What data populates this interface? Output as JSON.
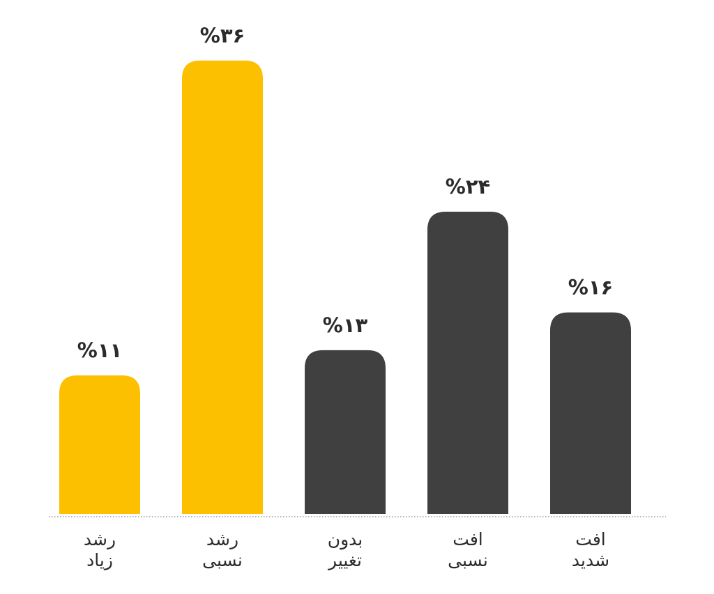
{
  "chart_data": {
    "type": "bar",
    "categories": [
      [
        "رشد",
        "زیاد"
      ],
      [
        "رشد",
        "نسبی"
      ],
      [
        "بدون",
        "تغییر"
      ],
      [
        "افت",
        "نسبی"
      ],
      [
        "افت",
        "شدید"
      ]
    ],
    "values": [
      11,
      36,
      13,
      24,
      16
    ],
    "value_labels": [
      "%۱۱",
      "%۳۶",
      "%۱۳",
      "%۲۴",
      "%۱۶"
    ],
    "bar_colors": [
      "#FCC000",
      "#FCC000",
      "#404040",
      "#404040",
      "#404040"
    ],
    "ylim": [
      0,
      36
    ],
    "grid": false,
    "baseline": "dotted",
    "title": "",
    "xlabel": "",
    "ylabel": ""
  }
}
